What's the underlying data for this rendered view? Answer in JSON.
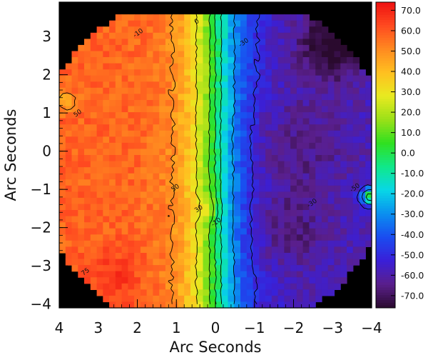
{
  "chart_data": {
    "type": "heatmap",
    "title": "",
    "xlabel": "Arc Seconds",
    "ylabel": "Arc Seconds",
    "xlim": [
      4,
      -4
    ],
    "ylim": [
      -4.1,
      3.9
    ],
    "x_ticks": [
      4,
      3,
      2,
      1,
      0,
      -1,
      -2,
      -3,
      -4
    ],
    "x_tick_labels": [
      "4",
      "3",
      "2",
      "1",
      "0",
      "−1",
      "−2",
      "−3",
      "−4"
    ],
    "y_ticks": [
      3,
      2,
      1,
      0,
      -1,
      -2,
      -3,
      -4
    ],
    "y_tick_labels": [
      "3",
      "2",
      "1",
      "0",
      "−1",
      "−2",
      "−3",
      "−4"
    ],
    "grid": false,
    "colorbar": {
      "range": [
        -76,
        74
      ],
      "ticks": [
        70,
        60,
        50,
        40,
        30,
        20,
        10,
        0,
        -10,
        -20,
        -30,
        -40,
        -50,
        -60,
        -70
      ],
      "tick_labels": [
        "70.0",
        "60.0",
        "50.0",
        "40.0",
        "30.0",
        "20.0",
        "10.0",
        "0.0",
        "-10.0",
        "-20.0",
        "-30.0",
        "-40.0",
        "-50.0",
        "-60.0",
        "-70.0"
      ],
      "colormap": [
        "#2a0a2e",
        "#5a1f8c",
        "#3a1fd8",
        "#1a4cf0",
        "#0a8ff0",
        "#08d7e6",
        "#10e88a",
        "#30e020",
        "#9be018",
        "#e8ea20",
        "#ffc020",
        "#ff8a20",
        "#ff4a20",
        "#ee1010"
      ]
    },
    "field_description": "velocity map: positive (red) toward +x side, negative (blue) toward -x side, zero band near x≈0",
    "contour_levels": [
      -50,
      -30,
      -10,
      0,
      10,
      30,
      50,
      75
    ],
    "contour_labels": [
      "75",
      "50",
      "50",
      "30",
      "-30",
      "-10",
      "-10",
      "0",
      "-30",
      "-50"
    ],
    "background_color": "#000000"
  }
}
